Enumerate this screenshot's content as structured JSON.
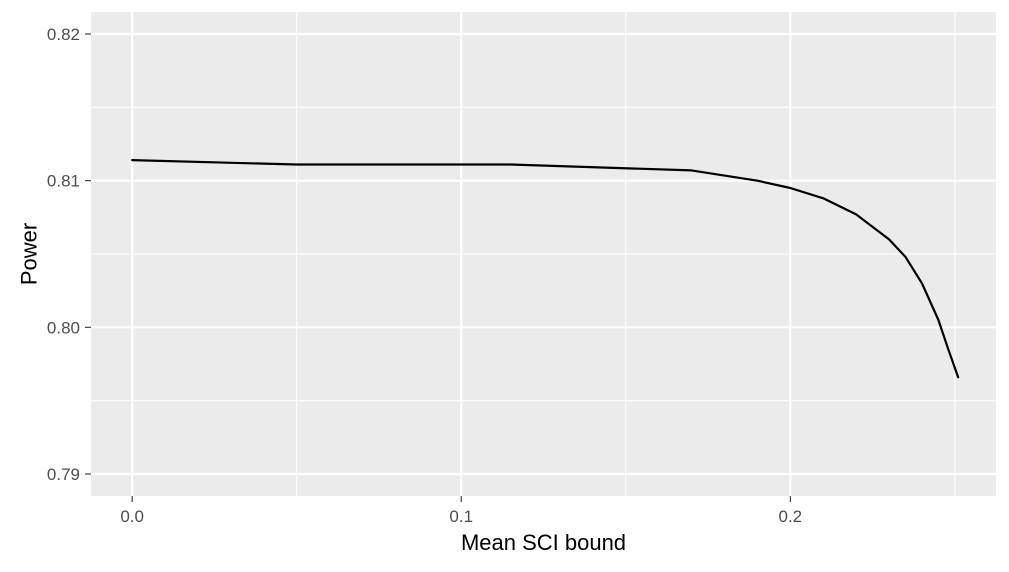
{
  "chart_data": {
    "type": "line",
    "xlabel": "Mean SCI bound",
    "ylabel": "Power",
    "xlim": [
      -0.0125,
      0.2625
    ],
    "ylim": [
      0.7885,
      0.8215
    ],
    "x_ticks": [
      0.0,
      0.1,
      0.2
    ],
    "x_tick_labels": [
      "0.0",
      "0.1",
      "0.2"
    ],
    "y_ticks": [
      0.79,
      0.8,
      0.81,
      0.82
    ],
    "y_tick_labels": [
      "0.79",
      "0.80",
      "0.81",
      "0.82"
    ],
    "grid": true,
    "background_color": "#ebebeb",
    "grid_color": "#ffffff",
    "line_color": "#000000",
    "series": [
      {
        "x": [
          0.0,
          0.05,
          0.1,
          0.115,
          0.17,
          0.19,
          0.2,
          0.21,
          0.22,
          0.23,
          0.235,
          0.24,
          0.245,
          0.248,
          0.251
        ],
        "y": [
          0.8114,
          0.8111,
          0.8111,
          0.8111,
          0.8107,
          0.81,
          0.8095,
          0.8088,
          0.8077,
          0.806,
          0.8048,
          0.803,
          0.8005,
          0.7985,
          0.7966
        ]
      }
    ]
  }
}
